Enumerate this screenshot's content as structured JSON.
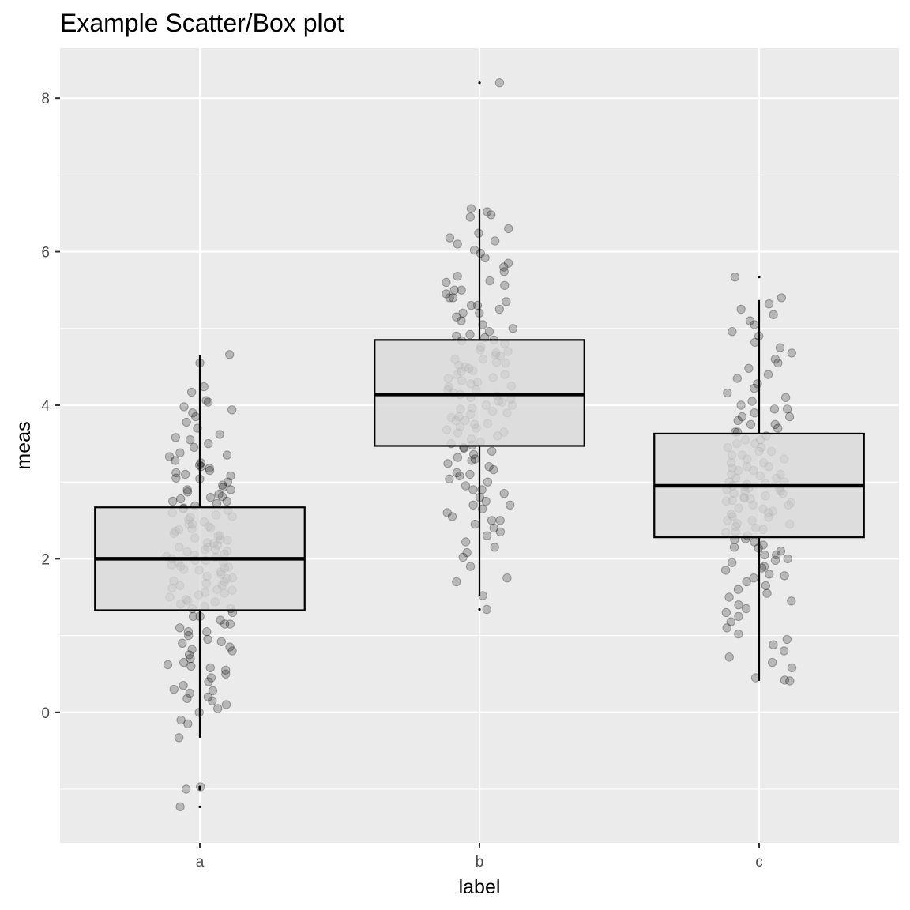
{
  "chart_data": {
    "type": "box",
    "title": "Example Scatter/Box plot",
    "xlabel": "label",
    "ylabel": "meas",
    "categories": [
      "a",
      "b",
      "c"
    ],
    "ylim": [
      -1.7,
      8.65
    ],
    "y_ticks": [
      0,
      2,
      4,
      6,
      8
    ],
    "y_tick_labels": [
      "0",
      "2",
      "4",
      "6",
      "8"
    ],
    "grid": true,
    "background": "#ebebeb",
    "point_color": "#000000",
    "box_fill": "#d9d9d9",
    "boxes": [
      {
        "category": "a",
        "whisker_low": -0.33,
        "q1": 1.33,
        "median": 2.0,
        "q3": 2.67,
        "whisker_high": 4.65,
        "outliers": [
          -0.97,
          -1.0,
          -1.23
        ]
      },
      {
        "category": "b",
        "whisker_low": 1.52,
        "q1": 3.47,
        "median": 4.14,
        "q3": 4.85,
        "whisker_high": 6.55,
        "outliers": [
          8.2,
          1.34
        ]
      },
      {
        "category": "c",
        "whisker_low": 0.41,
        "q1": 2.28,
        "median": 2.95,
        "q3": 3.63,
        "whisker_high": 5.37,
        "outliers": [
          5.67
        ]
      }
    ],
    "jitter_points": [
      {
        "category": "a",
        "values": [
          4.66,
          4.55,
          4.24,
          4.17,
          4.06,
          4.04,
          3.98,
          3.94,
          3.9,
          3.85,
          3.78,
          3.7,
          3.62,
          3.58,
          3.55,
          3.5,
          3.45,
          3.38,
          3.33,
          3.28,
          3.22,
          3.18,
          3.15,
          3.12,
          3.08,
          3.04,
          3.0,
          2.96,
          2.93,
          2.9,
          2.87,
          2.84,
          2.81,
          2.78,
          2.75,
          2.72,
          2.69,
          2.66,
          2.63,
          2.6,
          2.57,
          2.54,
          2.51,
          2.48,
          2.45,
          2.42,
          2.39,
          2.36,
          2.33,
          2.3,
          2.27,
          2.24,
          2.21,
          2.18,
          2.15,
          2.12,
          2.09,
          2.06,
          2.03,
          2.0,
          1.98,
          1.95,
          1.92,
          1.89,
          1.86,
          1.83,
          1.8,
          1.77,
          1.74,
          1.71,
          1.68,
          1.65,
          1.62,
          1.59,
          1.56,
          1.53,
          1.5,
          1.47,
          1.44,
          1.41,
          1.38,
          1.35,
          1.3,
          1.25,
          1.2,
          1.15,
          1.1,
          1.05,
          1.0,
          0.95,
          0.9,
          0.85,
          0.8,
          0.75,
          0.7,
          0.65,
          0.6,
          0.55,
          0.5,
          0.45,
          0.4,
          0.35,
          0.3,
          0.25,
          0.2,
          0.15,
          0.1,
          0.05,
          0.0,
          -0.1,
          -0.15,
          -0.33,
          -0.97,
          -1.0,
          -1.23,
          2.38,
          2.4,
          2.2,
          1.9,
          2.1,
          2.3,
          1.7,
          1.6,
          2.8,
          2.9,
          3.05,
          1.45,
          1.35,
          1.25,
          0.92,
          0.82,
          2.55,
          2.65,
          1.95,
          2.05,
          1.75,
          1.55,
          3.2,
          3.35,
          0.58,
          0.62,
          0.28,
          0.18,
          2.25,
          2.15,
          1.85,
          1.65,
          2.75,
          2.45,
          3.1,
          3.25,
          1.15,
          1.05,
          2.02,
          1.98,
          2.12,
          1.88
        ]
      },
      {
        "category": "b",
        "values": [
          8.2,
          6.56,
          6.52,
          6.48,
          6.45,
          6.3,
          6.24,
          6.18,
          6.14,
          6.1,
          6.02,
          5.98,
          5.92,
          5.85,
          5.8,
          5.74,
          5.68,
          5.62,
          5.56,
          5.5,
          5.45,
          5.4,
          5.35,
          5.3,
          5.25,
          5.2,
          5.15,
          5.1,
          5.05,
          5.0,
          4.96,
          4.92,
          4.88,
          4.84,
          4.8,
          4.76,
          4.72,
          4.68,
          4.64,
          4.6,
          4.56,
          4.52,
          4.48,
          4.44,
          4.4,
          4.36,
          4.32,
          4.28,
          4.24,
          4.2,
          4.16,
          4.12,
          4.08,
          4.04,
          4.0,
          3.96,
          3.92,
          3.88,
          3.84,
          3.8,
          3.76,
          3.72,
          3.68,
          3.64,
          3.6,
          3.56,
          3.52,
          3.48,
          3.44,
          3.4,
          3.36,
          3.32,
          3.28,
          3.24,
          3.2,
          3.16,
          3.12,
          3.08,
          3.04,
          3.0,
          2.95,
          2.9,
          2.85,
          2.8,
          2.75,
          2.7,
          2.65,
          2.6,
          2.55,
          2.5,
          2.45,
          2.4,
          2.35,
          2.3,
          2.22,
          2.15,
          2.08,
          2.02,
          1.9,
          1.75,
          1.7,
          1.52,
          1.34,
          4.14,
          4.3,
          4.5,
          4.7,
          4.9,
          4.1,
          3.9,
          3.7,
          3.5,
          4.25,
          4.45,
          4.65,
          4.85,
          4.05,
          3.85,
          3.65,
          3.45,
          5.6,
          5.4,
          5.2,
          3.3,
          3.1,
          2.9,
          4.4,
          4.6,
          4.0,
          3.8,
          4.2,
          4.35,
          4.55,
          3.95,
          3.75,
          5.3,
          5.5,
          2.7,
          2.5
        ]
      },
      {
        "category": "c",
        "values": [
          5.67,
          5.4,
          5.32,
          5.25,
          5.18,
          5.1,
          5.05,
          4.96,
          4.9,
          4.82,
          4.75,
          4.68,
          4.6,
          4.55,
          4.48,
          4.4,
          4.35,
          4.28,
          4.22,
          4.16,
          4.1,
          4.05,
          4.0,
          3.95,
          3.9,
          3.85,
          3.8,
          3.75,
          3.7,
          3.65,
          3.6,
          3.55,
          3.5,
          3.45,
          3.4,
          3.35,
          3.3,
          3.25,
          3.2,
          3.15,
          3.1,
          3.05,
          3.0,
          2.97,
          2.94,
          2.91,
          2.88,
          2.85,
          2.82,
          2.79,
          2.76,
          2.73,
          2.7,
          2.66,
          2.62,
          2.58,
          2.54,
          2.5,
          2.46,
          2.42,
          2.38,
          2.34,
          2.3,
          2.26,
          2.22,
          2.18,
          2.14,
          2.1,
          2.05,
          2.0,
          1.95,
          1.9,
          1.85,
          1.8,
          1.75,
          1.7,
          1.65,
          1.6,
          1.55,
          1.5,
          1.45,
          1.4,
          1.35,
          1.3,
          1.25,
          1.18,
          1.1,
          1.02,
          0.95,
          0.88,
          0.8,
          0.72,
          0.65,
          0.58,
          0.45,
          0.42,
          0.41,
          2.95,
          3.1,
          2.8,
          3.2,
          2.7,
          3.3,
          2.6,
          3.4,
          2.5,
          3.5,
          2.4,
          2.9,
          3.0,
          2.85,
          3.05,
          2.75,
          3.15,
          2.65,
          3.25,
          2.55,
          3.35,
          2.45,
          3.45,
          2.35,
          2.25,
          3.55,
          2.15,
          3.65,
          2.05,
          1.98,
          3.75,
          1.88,
          3.85,
          1.78,
          3.95,
          2.92,
          2.98,
          3.08,
          2.88,
          2.78,
          3.18
        ]
      }
    ]
  }
}
